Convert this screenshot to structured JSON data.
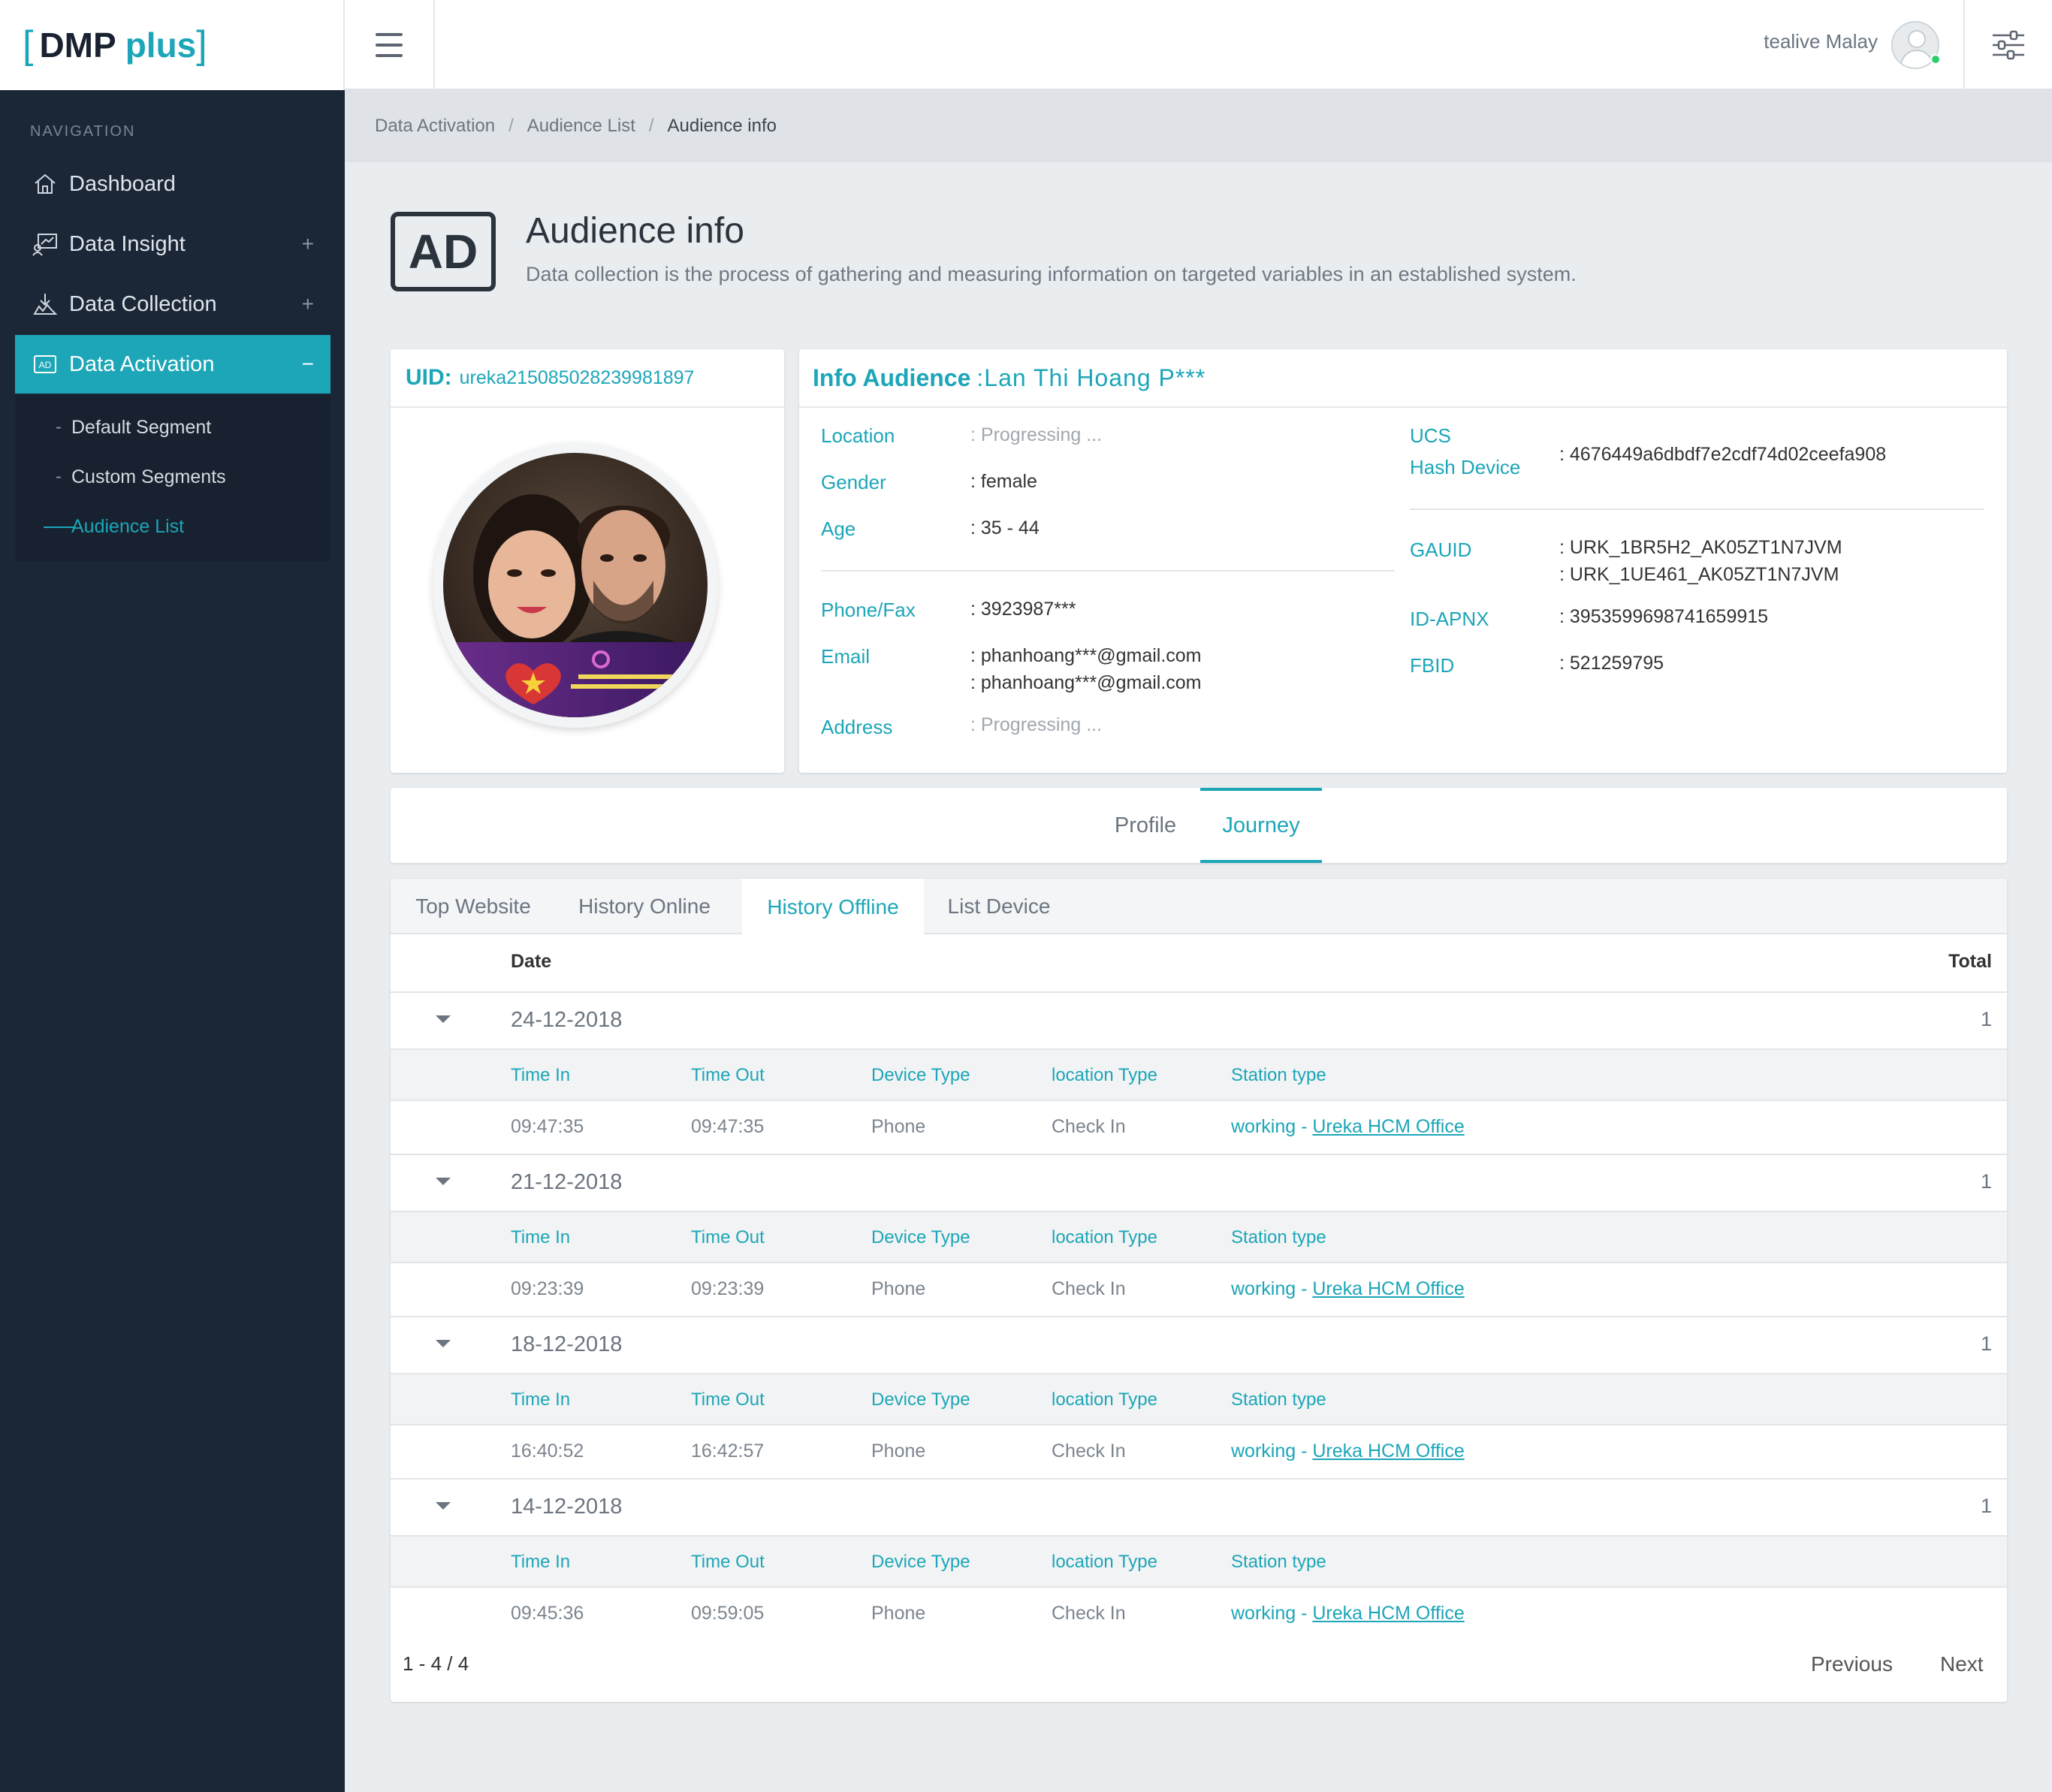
{
  "app": {
    "logo_name": "DMP",
    "logo_plus": "plus",
    "logo_open": "[",
    "logo_close": "]"
  },
  "header": {
    "user_name": "tealive Malay"
  },
  "sidebar": {
    "nav_title": "NAVIGATION",
    "items": [
      {
        "label": "Dashboard",
        "icon": "home-icon",
        "expander": ""
      },
      {
        "label": "Data Insight",
        "icon": "insight-icon",
        "expander": "+"
      },
      {
        "label": "Data Collection",
        "icon": "collection-icon",
        "expander": "+"
      },
      {
        "label": "Data Activation",
        "icon": "ad-icon",
        "expander": "−"
      }
    ],
    "subitems": [
      {
        "label": "Default Segment",
        "marker": "-"
      },
      {
        "label": "Custom Segments",
        "marker": "-"
      },
      {
        "label": "Audience List",
        "marker": ""
      }
    ]
  },
  "breadcrumb": {
    "items": [
      "Data Activation",
      "Audience List",
      "Audience info"
    ],
    "separator": "/"
  },
  "page": {
    "icon_text": "AD",
    "title": "Audience info",
    "subtitle": "Data collection is the process of gathering and measuring information on targeted variables in an established system."
  },
  "uid_card": {
    "label": "UID:",
    "value": "ureka215085028239981897"
  },
  "info_card": {
    "label": "Info Audience",
    "name": ":Lan Thi Hoang P***",
    "location_label": "Location",
    "location_value": ": Progressing ...",
    "gender_label": "Gender",
    "gender_value": ": female",
    "age_label": "Age",
    "age_value": ": 35 - 44",
    "phone_label": "Phone/Fax",
    "phone_value": ": 3923987***",
    "email_label": "Email",
    "email_value_1": ": phanhoang***@gmail.com",
    "email_value_2": ": phanhoang***@gmail.com",
    "address_label": "Address",
    "address_value": ": Progressing ...",
    "ucs_label": "UCS",
    "hash_label": "Hash Device",
    "hash_value": ": 4676449a6dbdf7e2cdf74d02ceefa908",
    "gauid_label": "GAUID",
    "gauid_value_1": ": URK_1BR5H2_AK05ZT1N7JVM",
    "gauid_value_2": ": URK_1UE461_AK05ZT1N7JVM",
    "apnx_label": "ID-APNX",
    "apnx_value": ": 3953599698741659915",
    "fbid_label": "FBID",
    "fbid_value": ": 521259795"
  },
  "main_tabs": {
    "profile": "Profile",
    "journey": "Journey",
    "active": "Journey"
  },
  "sub_tabs": {
    "items": [
      "Top Website",
      "History Online",
      "History Offline",
      "List Device"
    ],
    "active": "History Offline"
  },
  "table": {
    "col_date": "Date",
    "col_total": "Total",
    "sub_cols": [
      "Time In",
      "Time Out",
      "Device Type",
      "location Type",
      "Station type"
    ],
    "groups": [
      {
        "date": "24-12-2018",
        "total": "1",
        "time_in": "09:47:35",
        "time_out": "09:47:35",
        "device": "Phone",
        "loc_type": "Check In",
        "station_prefix": "working - ",
        "station_link": "Ureka HCM Office"
      },
      {
        "date": "21-12-2018",
        "total": "1",
        "time_in": "09:23:39",
        "time_out": "09:23:39",
        "device": "Phone",
        "loc_type": "Check In",
        "station_prefix": "working - ",
        "station_link": "Ureka HCM Office"
      },
      {
        "date": "18-12-2018",
        "total": "1",
        "time_in": "16:40:52",
        "time_out": "16:42:57",
        "device": "Phone",
        "loc_type": "Check In",
        "station_prefix": "working - ",
        "station_link": "Ureka HCM Office"
      },
      {
        "date": "14-12-2018",
        "total": "1",
        "time_in": "09:45:36",
        "time_out": "09:59:05",
        "device": "Phone",
        "loc_type": "Check In",
        "station_prefix": "working - ",
        "station_link": "Ureka HCM Office"
      }
    ]
  },
  "pagination": {
    "info": "1 - 4 / 4",
    "previous": "Previous",
    "next": "Next"
  },
  "colors": {
    "accent": "#1ca6b8",
    "sidebar": "#1b2637",
    "background": "#e9edf0"
  }
}
